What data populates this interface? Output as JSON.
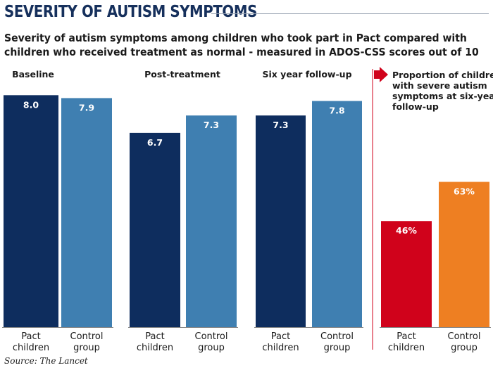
{
  "title": "SEVERITY OF AUTISM SYMPTOMS",
  "subtitle": "Severity of autism symptoms among children who took part in Pact compared with children who received treatment as normal - measured in ADOS-CSS scores out of 10",
  "source_label": "Source:",
  "source_name": "The Lancet",
  "colors": {
    "pact": "#0e2d5e",
    "control": "#3f7fb1",
    "pact_pct": "#d0021b",
    "control_pct": "#ee7f22",
    "arrow": "#d0021b",
    "divider": "#d0021b"
  },
  "chart_data": [
    {
      "type": "bar",
      "title": "Baseline",
      "categories": [
        "Pact children",
        "Control group"
      ],
      "values": [
        8.0,
        7.9
      ],
      "labels": [
        "8.0",
        "7.9"
      ],
      "ylim": [
        0,
        8.25
      ]
    },
    {
      "type": "bar",
      "title": "Post-treatment",
      "categories": [
        "Pact children",
        "Control group"
      ],
      "values": [
        6.7,
        7.3
      ],
      "labels": [
        "6.7",
        "7.3"
      ],
      "ylim": [
        0,
        8.25
      ]
    },
    {
      "type": "bar",
      "title": "Six year follow-up",
      "categories": [
        "Pact children",
        "Control group"
      ],
      "values": [
        7.3,
        7.8
      ],
      "labels": [
        "7.3",
        "7.8"
      ],
      "ylim": [
        0,
        8.25
      ]
    },
    {
      "type": "bar",
      "title": "Proportion of children with severe autism symptoms at six-year follow-up",
      "categories": [
        "Pact children",
        "Control group"
      ],
      "values": [
        46,
        63
      ],
      "labels": [
        "46%",
        "63%"
      ],
      "ylim": [
        0,
        90
      ]
    }
  ]
}
